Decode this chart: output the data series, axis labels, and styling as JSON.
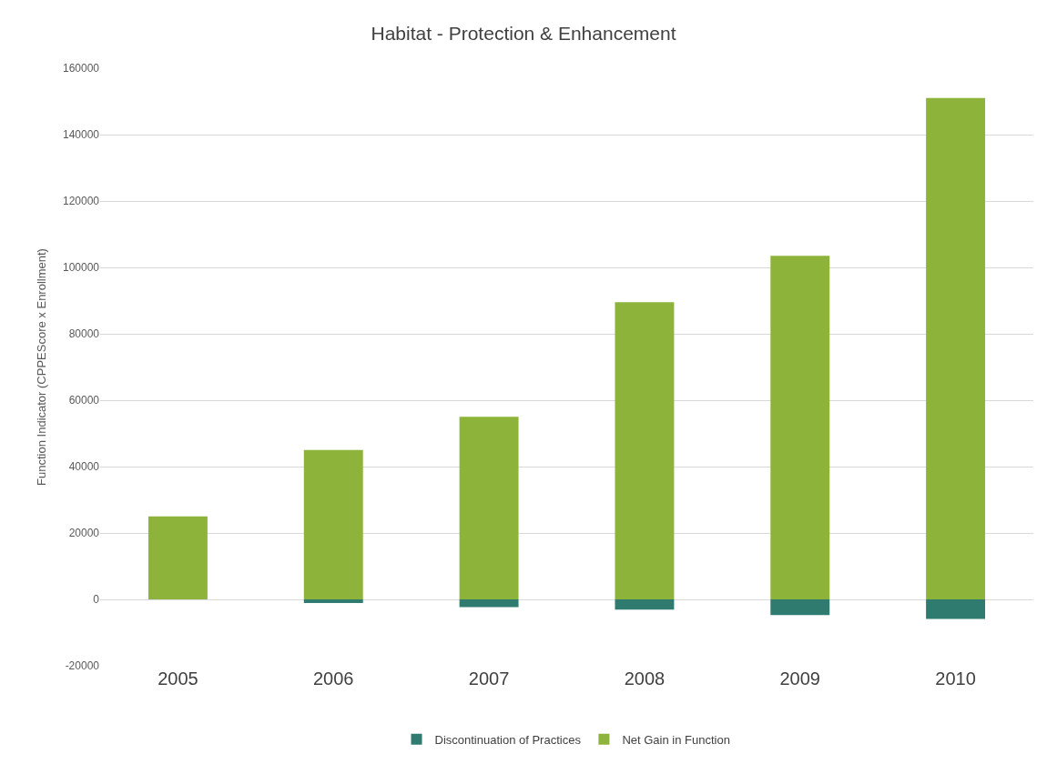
{
  "chart_data": {
    "type": "bar",
    "title": "Habitat - Protection & Enhancement",
    "ylabel": "Function Indicator (CPPEScore x Enrollment)",
    "categories": [
      "2005",
      "2006",
      "2007",
      "2008",
      "2009",
      "2010"
    ],
    "series": [
      {
        "name": "Discontinuation of Practices",
        "color": "#2f7b6f",
        "values": [
          0,
          -1100,
          -2300,
          -3100,
          -4700,
          -5900
        ]
      },
      {
        "name": "Net Gain in Function",
        "color": "#8db33a",
        "values": [
          25000,
          45000,
          55000,
          89500,
          103500,
          151000
        ]
      }
    ],
    "stacked": true,
    "ylim": [
      -20000,
      160000
    ],
    "yticks": [
      -20000,
      0,
      20000,
      40000,
      60000,
      80000,
      100000,
      120000,
      140000,
      160000
    ],
    "grid": "y",
    "legend": "bottom"
  }
}
